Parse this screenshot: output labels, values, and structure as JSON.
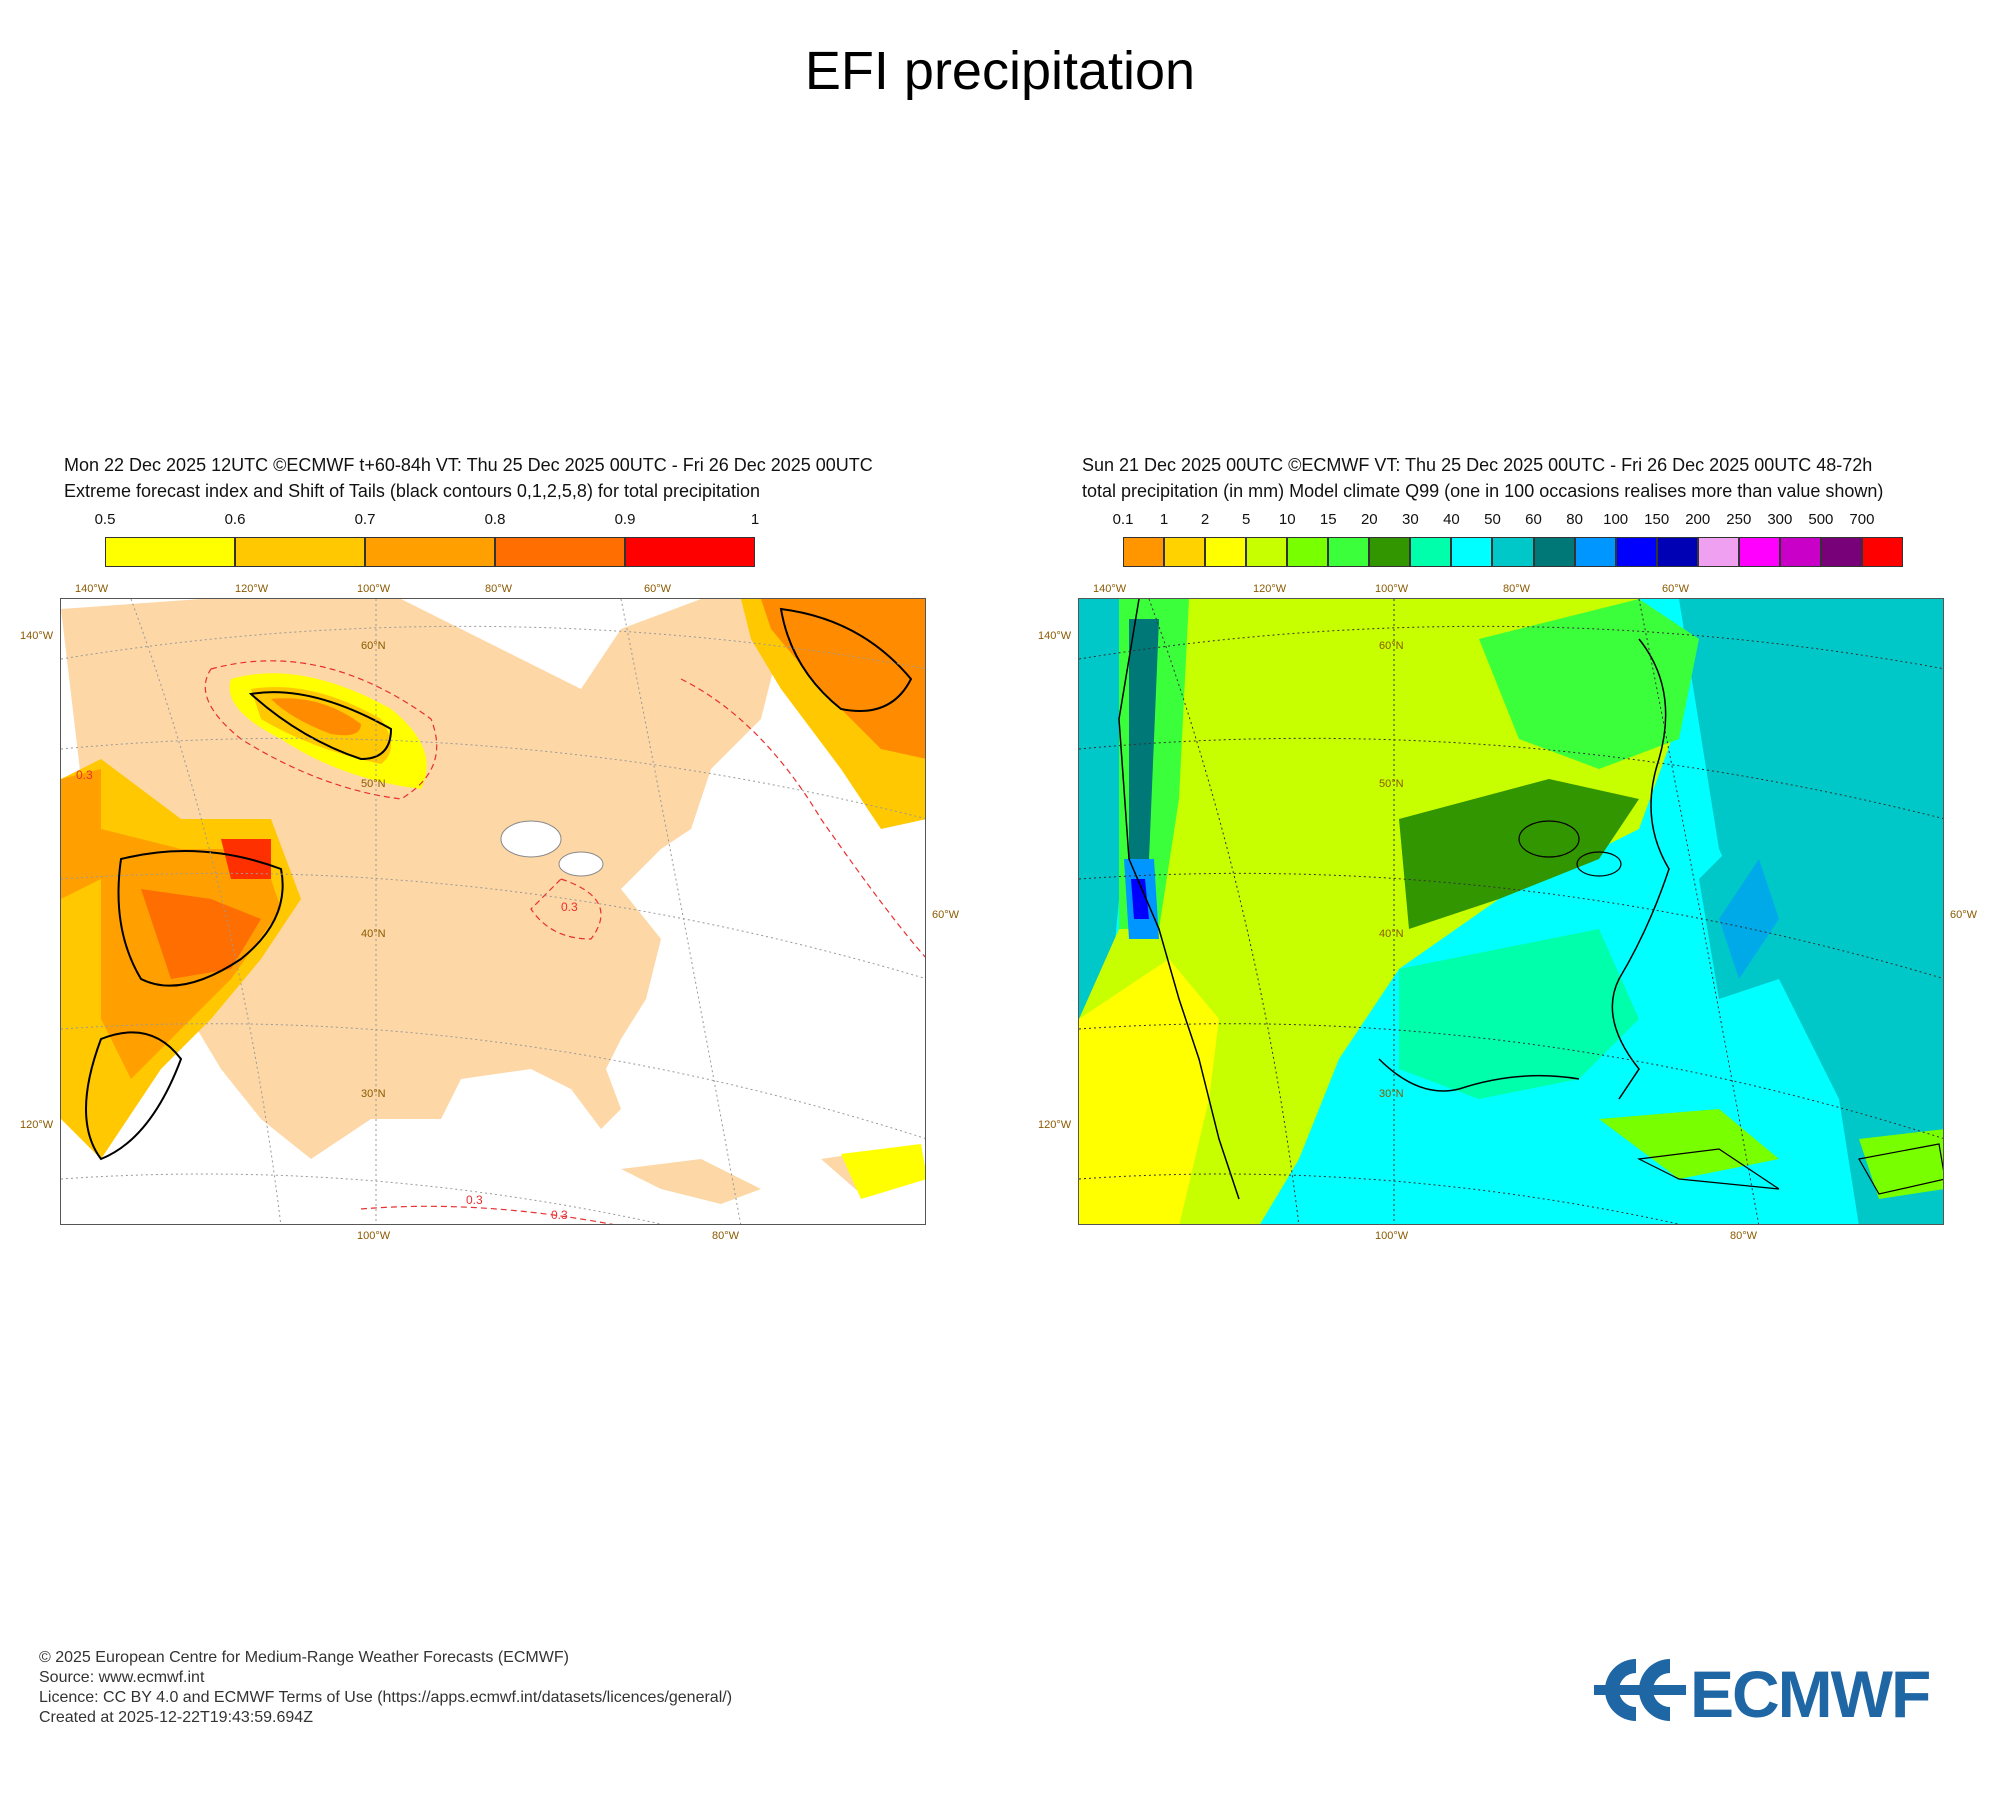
{
  "title": "EFI precipitation",
  "panels": {
    "left": {
      "line1": "Mon 22 Dec 2025 12UTC ©ECMWF t+60-84h  VT: Thu 25 Dec 2025 00UTC - Fri 26 Dec 2025 00UTC",
      "line2": "Extreme forecast index and Shift of Tails (black contours 0,1,2,5,8) for total precipitation",
      "colorbar": {
        "ticks": [
          "0.5",
          "0.6",
          "0.7",
          "0.8",
          "0.9",
          "1"
        ],
        "colors": [
          "#ffff00",
          "#ffc800",
          "#ffa000",
          "#ff6e00",
          "#ff0000"
        ]
      },
      "lon_top": [
        "140°W",
        "120°W",
        "100°W",
        "80°W",
        "60°W"
      ],
      "lon_bottom": [
        "100°W",
        "80°W"
      ],
      "lat": [
        "60°N",
        "50°N",
        "40°N",
        "30°N"
      ],
      "edge_left": [
        "140°W",
        "120°W"
      ],
      "edge_right": "60°W",
      "contour_labels": [
        "0.3",
        "0.3",
        "0.3",
        "0.3"
      ]
    },
    "right": {
      "line1": "Sun 21 Dec 2025 00UTC ©ECMWF VT: Thu 25 Dec 2025 00UTC - Fri 26 Dec 2025 00UTC   48-72h",
      "line2": "total precipitation (in mm)  Model climate Q99 (one in 100 occasions realises more than value shown)",
      "colorbar": {
        "ticks": [
          "0.1",
          "1",
          "2",
          "5",
          "10",
          "15",
          "20",
          "30",
          "40",
          "50",
          "60",
          "80",
          "100",
          "150",
          "200",
          "250",
          "300",
          "500",
          "700"
        ],
        "colors": [
          "#ff9600",
          "#ffd200",
          "#ffff00",
          "#c8ff00",
          "#78ff00",
          "#3cff3c",
          "#329600",
          "#00ffaa",
          "#00ffff",
          "#00c8c8",
          "#007878",
          "#0096ff",
          "#0000ff",
          "#0000b4",
          "#f0a0f0",
          "#ff00ff",
          "#c800c8",
          "#780078",
          "#ff0000"
        ]
      },
      "lon_top": [
        "140°W",
        "120°W",
        "100°W",
        "80°W",
        "60°W"
      ],
      "lon_bottom": [
        "100°W",
        "80°W"
      ],
      "lat": [
        "60°N",
        "50°N",
        "40°N",
        "30°N"
      ],
      "edge_left": [
        "140°W",
        "120°W"
      ],
      "edge_right": "60°W"
    }
  },
  "footer": {
    "copyright": "© 2025 European Centre for Medium-Range Weather Forecasts (ECMWF)",
    "source": "Source: www.ecmwf.int",
    "licence": "Licence: CC BY 4.0 and ECMWF Terms of Use (https://apps.ecmwf.int/datasets/licences/general/)",
    "created": "Created at 2025-12-22T19:43:59.694Z"
  },
  "logo_text": "ECMWF",
  "colors": {
    "land": "#fdd7a6",
    "logo": "#1f66a5",
    "contour_red": "#e83030",
    "grid": "#999999"
  }
}
